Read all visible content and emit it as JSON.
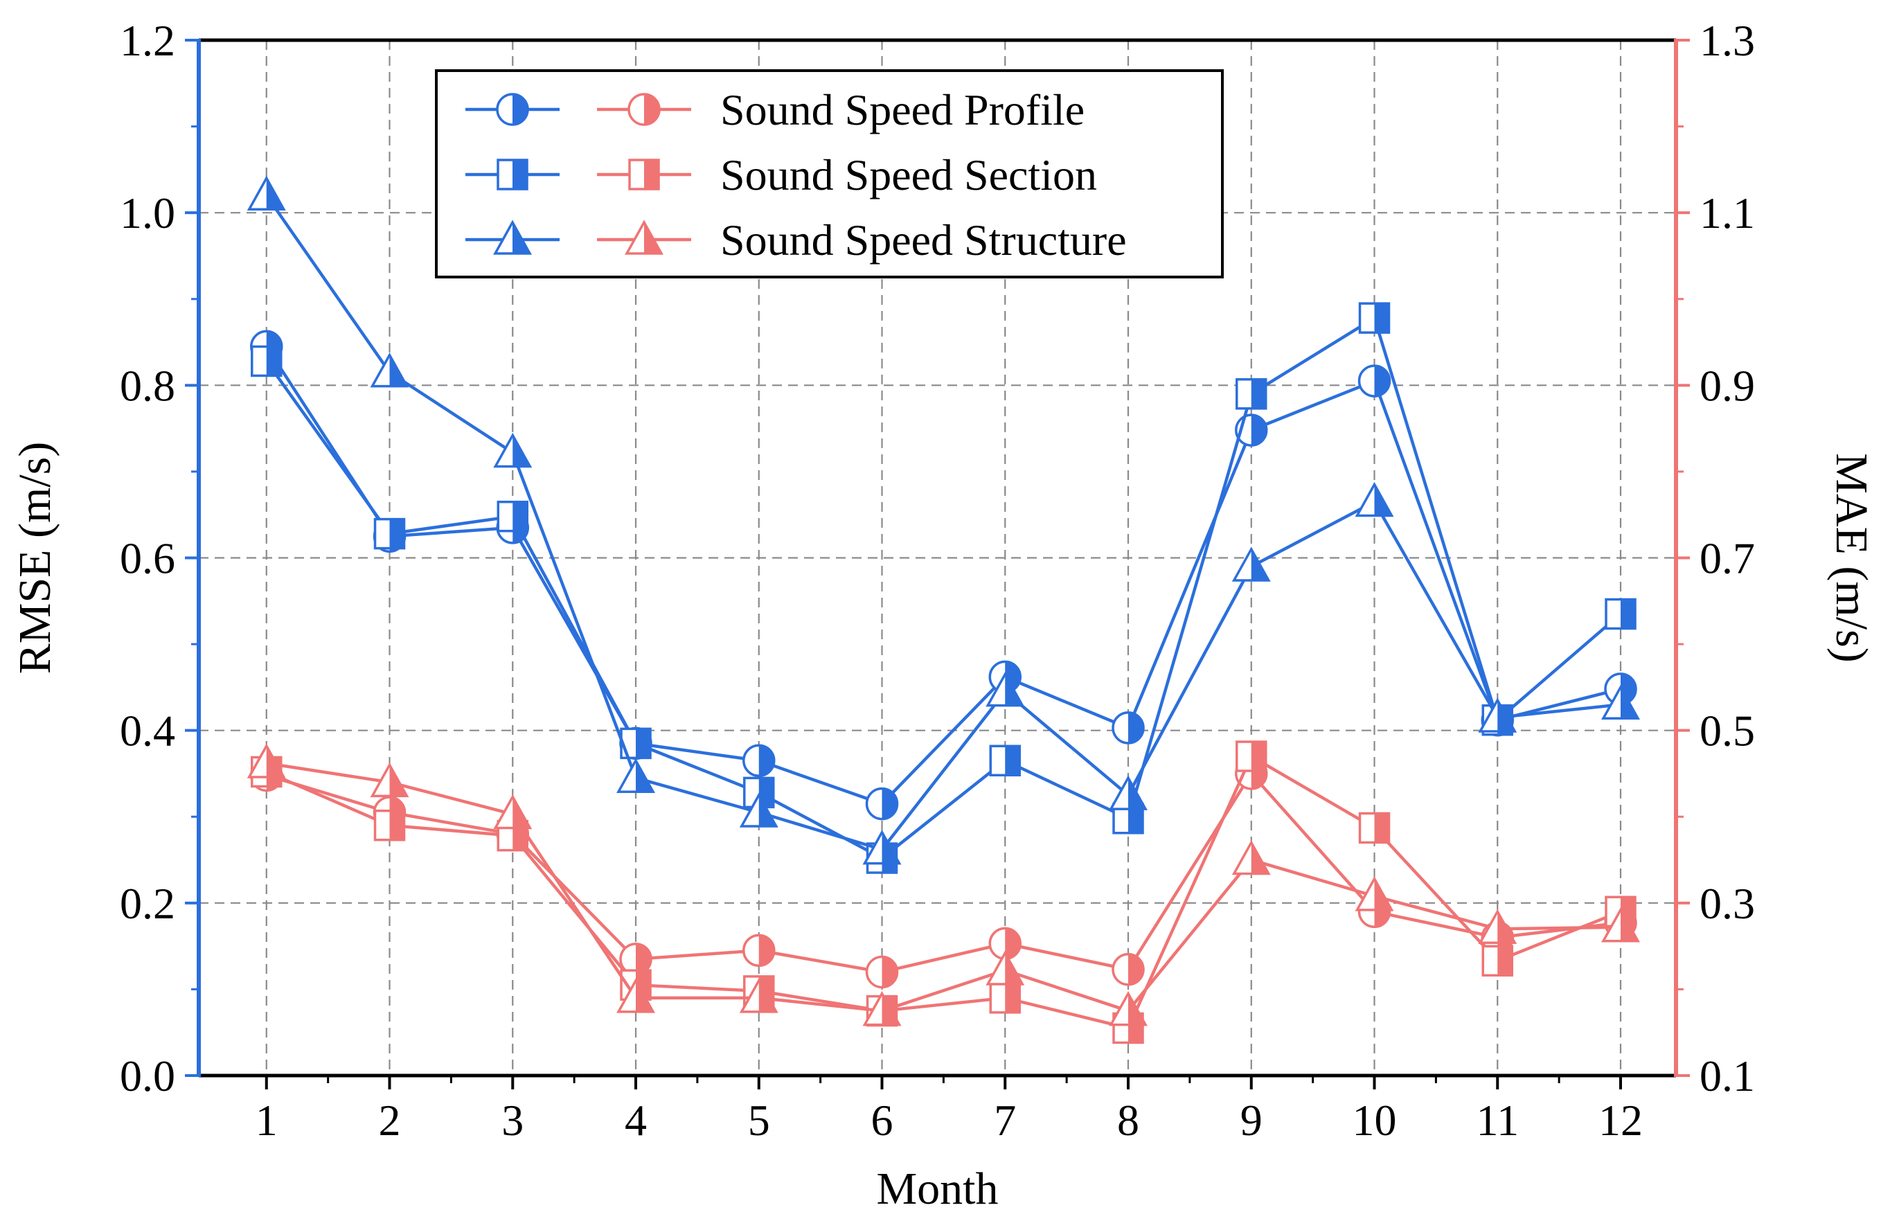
{
  "chart_data": {
    "type": "line",
    "x": [
      1,
      2,
      3,
      4,
      5,
      6,
      7,
      8,
      9,
      10,
      11,
      12
    ],
    "xlabel": "Month",
    "xlim": [
      0.45,
      12.45
    ],
    "x_ticks": [
      "1",
      "2",
      "3",
      "4",
      "5",
      "6",
      "7",
      "8",
      "9",
      "10",
      "11",
      "12"
    ],
    "y_left": {
      "label": "RMSE (m/s)",
      "range": [
        0.0,
        1.2
      ],
      "ticks": [
        "0.0",
        "0.2",
        "0.4",
        "0.6",
        "0.8",
        "1.0",
        "1.2"
      ],
      "color": "#2b6fdc"
    },
    "y_right": {
      "label": "MAE (m/s)",
      "range": [
        0.1,
        1.3
      ],
      "ticks": [
        "0.1",
        "0.3",
        "0.5",
        "0.7",
        "0.9",
        "1.1",
        "1.3"
      ],
      "color": "#f07474"
    },
    "grid": true,
    "legend_position": "top-center",
    "legend": [
      {
        "label": "Sound Speed Profile",
        "marker": "circle"
      },
      {
        "label": "Sound Speed Section",
        "marker": "square"
      },
      {
        "label": "Sound Speed Structure",
        "marker": "triangle"
      }
    ],
    "series": [
      {
        "axis": "left",
        "marker": "circle",
        "color": "#2b6fdc",
        "values": [
          0.845,
          0.625,
          0.635,
          0.385,
          0.365,
          0.315,
          0.462,
          0.403,
          0.748,
          0.805,
          0.412,
          0.448
        ]
      },
      {
        "axis": "left",
        "marker": "square",
        "color": "#2b6fdc",
        "values": [
          0.828,
          0.628,
          0.648,
          0.385,
          0.328,
          0.252,
          0.365,
          0.298,
          0.79,
          0.878,
          0.412,
          0.535
        ]
      },
      {
        "axis": "left",
        "marker": "triangle",
        "color": "#2b6fdc",
        "values": [
          1.02,
          0.815,
          0.722,
          0.345,
          0.305,
          0.262,
          0.445,
          0.325,
          0.59,
          0.665,
          0.415,
          0.43
        ]
      },
      {
        "axis": "right",
        "marker": "circle",
        "color": "#f07474",
        "values": [
          0.448,
          0.405,
          0.38,
          0.235,
          0.245,
          0.22,
          0.253,
          0.223,
          0.45,
          0.29,
          0.26,
          0.277
        ]
      },
      {
        "axis": "right",
        "marker": "square",
        "color": "#f07474",
        "values": [
          0.452,
          0.39,
          0.378,
          0.205,
          0.198,
          0.175,
          0.19,
          0.155,
          0.47,
          0.387,
          0.233,
          0.29
        ]
      },
      {
        "axis": "right",
        "marker": "triangle",
        "color": "#f07474",
        "values": [
          0.462,
          0.44,
          0.403,
          0.19,
          0.19,
          0.175,
          0.222,
          0.175,
          0.35,
          0.308,
          0.27,
          0.272
        ]
      }
    ]
  }
}
